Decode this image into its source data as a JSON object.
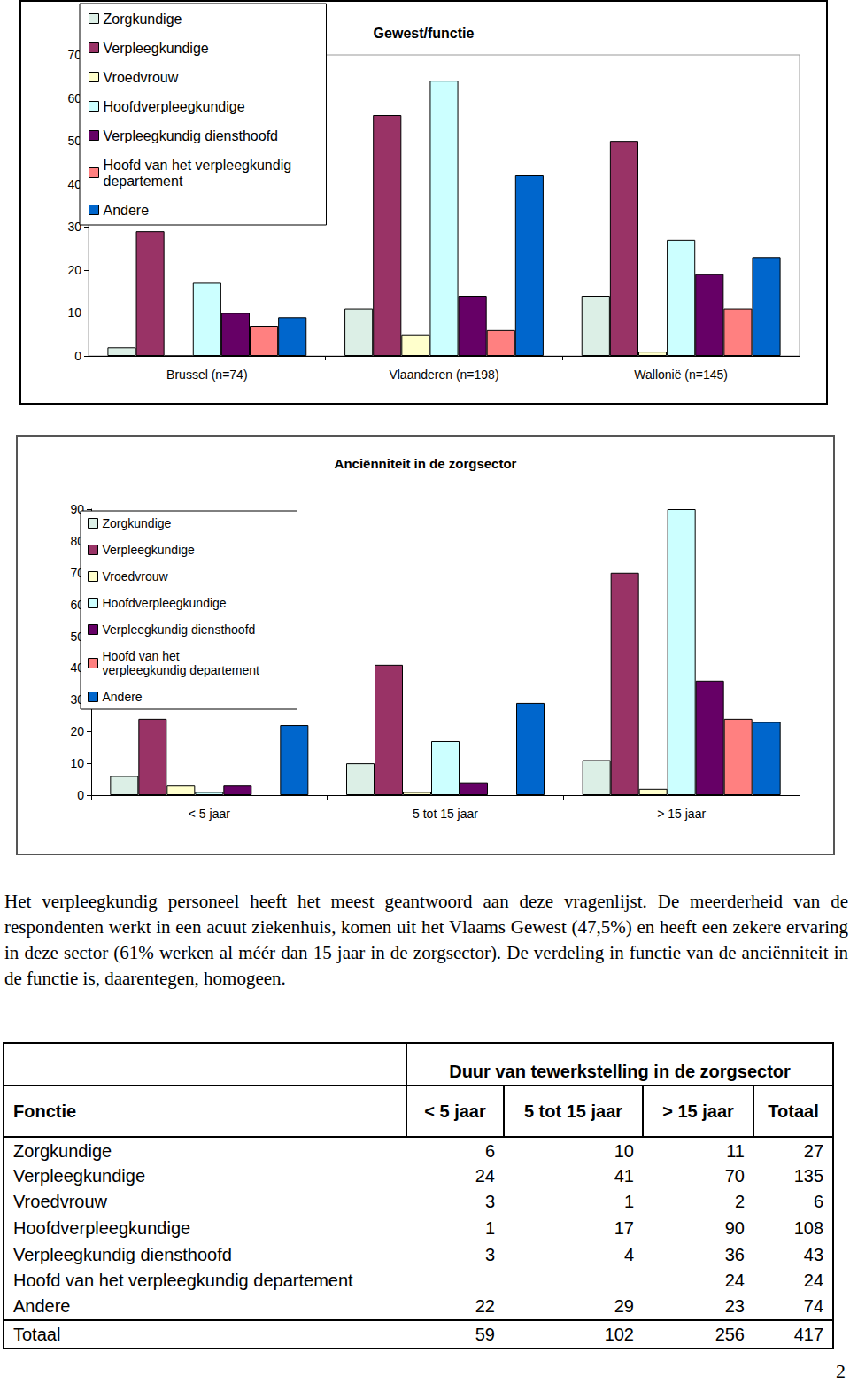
{
  "chart_data": [
    {
      "type": "bar",
      "title": "Gewest/functie",
      "categories": [
        "Brussel (n=74)",
        "Vlaanderen (n=198)",
        "Wallonië (n=145)"
      ],
      "series": [
        {
          "name": "Zorgkundige",
          "color": "#dcefe6",
          "values": [
            2,
            11,
            14
          ]
        },
        {
          "name": "Verpleegkundige",
          "color": "#993366",
          "values": [
            29,
            56,
            50
          ]
        },
        {
          "name": "Vroedvrouw",
          "color": "#ffffcc",
          "values": [
            0,
            5,
            1
          ]
        },
        {
          "name": "Hoofdverpleegkundige",
          "color": "#ccffff",
          "values": [
            17,
            64,
            27
          ]
        },
        {
          "name": "Verpleegkundig diensthoofd",
          "color": "#660066",
          "values": [
            10,
            14,
            19
          ]
        },
        {
          "name": "Hoofd van het verpleegkundig departement",
          "color": "#ff8080",
          "values": [
            7,
            6,
            11
          ]
        },
        {
          "name": "Andere",
          "color": "#0066cc",
          "values": [
            9,
            42,
            23
          ]
        }
      ],
      "ylim": [
        0,
        70
      ],
      "yticks": [
        0,
        10,
        20,
        30,
        40,
        50,
        60,
        70
      ],
      "grid": false,
      "legend": "top-left"
    },
    {
      "type": "bar",
      "title": "Anciënniteit in de zorgsector",
      "categories": [
        "< 5 jaar",
        "5 tot 15 jaar",
        "> 15 jaar"
      ],
      "series": [
        {
          "name": "Zorgkundige",
          "color": "#dcefe6",
          "values": [
            6,
            10,
            11
          ]
        },
        {
          "name": "Verpleegkundige",
          "color": "#993366",
          "values": [
            24,
            41,
            70
          ]
        },
        {
          "name": "Vroedvrouw",
          "color": "#ffffcc",
          "values": [
            3,
            1,
            2
          ]
        },
        {
          "name": "Hoofdverpleegkundige",
          "color": "#ccffff",
          "values": [
            1,
            17,
            90
          ]
        },
        {
          "name": "Verpleegkundig diensthoofd",
          "color": "#660066",
          "values": [
            3,
            4,
            36
          ]
        },
        {
          "name": "Hoofd van het verpleegkundig departement",
          "color": "#ff8080",
          "values": [
            null,
            null,
            24
          ]
        },
        {
          "name": "Andere",
          "color": "#0066cc",
          "values": [
            22,
            29,
            23
          ]
        }
      ],
      "ylim": [
        0,
        90
      ],
      "yticks": [
        0,
        10,
        20,
        30,
        40,
        50,
        60,
        70,
        80,
        90
      ],
      "grid": false,
      "legend": "top-left"
    }
  ],
  "text": "Het verpleegkundig personeel heeft het meest geantwoord aan deze vragenlijst. De meerderheid van de respondenten werkt in een acuut ziekenhuis, komen uit het Vlaams Gewest (47,5%) en heeft een zekere ervaring in deze sector (61% werken al méér dan 15 jaar in de zorgsector). De verdeling in functie van de anciënniteit in de functie is, daarentegen, homogeen.",
  "table": {
    "group_header": "Duur van tewerkstelling in de zorgsector",
    "columns": [
      "Fonctie",
      "< 5 jaar",
      "5 tot 15 jaar",
      "> 15 jaar",
      "Totaal"
    ],
    "rows": [
      [
        "Zorgkundige",
        6,
        10,
        11,
        27
      ],
      [
        "Verpleegkundige",
        24,
        41,
        70,
        135
      ],
      [
        "Vroedvrouw",
        3,
        1,
        2,
        6
      ],
      [
        "Hoofdverpleegkundige",
        1,
        17,
        90,
        108
      ],
      [
        "Verpleegkundig diensthoofd",
        3,
        4,
        36,
        43
      ],
      [
        "Hoofd van het verpleegkundig departement",
        null,
        null,
        24,
        24
      ],
      [
        "Andere",
        22,
        29,
        23,
        74
      ]
    ],
    "total": [
      "Totaal",
      59,
      102,
      256,
      417
    ]
  },
  "page_number": "2"
}
